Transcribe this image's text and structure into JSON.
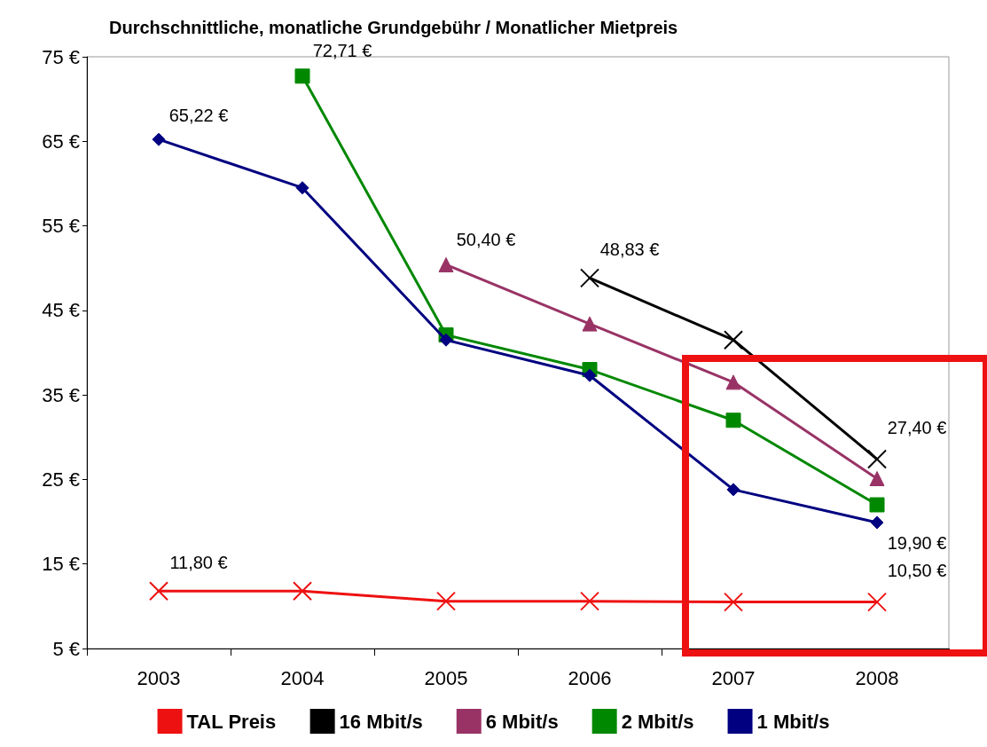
{
  "chart_data": {
    "type": "line",
    "title": "Durchschnittliche, monatliche Grundgebühr / Monatlicher Mietpreis",
    "categories": [
      "2003",
      "2004",
      "2005",
      "2006",
      "2007",
      "2008"
    ],
    "series": [
      {
        "name": "TAL Preis",
        "color": "#ee1111",
        "marker": "cross",
        "values": [
          11.8,
          11.8,
          10.6,
          10.6,
          10.5,
          10.5
        ],
        "value_labels": [
          "11,80 €",
          null,
          null,
          null,
          null,
          "10,50 €"
        ]
      },
      {
        "name": "16 Mbit/s",
        "color": "#000000",
        "marker": "cross",
        "values": [
          null,
          null,
          null,
          48.83,
          41.5,
          27.4
        ],
        "value_labels": [
          null,
          null,
          null,
          "48,83 €",
          null,
          "27,40 €"
        ]
      },
      {
        "name": "6 Mbit/s",
        "color": "#993366",
        "marker": "triangle",
        "values": [
          null,
          null,
          50.4,
          43.4,
          36.5,
          25.1
        ],
        "value_labels": [
          null,
          null,
          "50,40 €",
          null,
          null,
          null
        ]
      },
      {
        "name": "2 Mbit/s",
        "color": "#008800",
        "marker": "square",
        "values": [
          null,
          72.71,
          42.1,
          38.0,
          32.0,
          22.0
        ],
        "value_labels": [
          null,
          "72,71 €",
          null,
          null,
          null,
          null
        ]
      },
      {
        "name": "1 Mbit/s",
        "color": "#000080",
        "marker": "diamond",
        "values": [
          65.22,
          59.5,
          41.5,
          37.3,
          23.8,
          19.9
        ],
        "value_labels": [
          "65,22 €",
          null,
          null,
          null,
          null,
          "19,90 €"
        ]
      }
    ],
    "ylim": [
      5,
      75
    ],
    "yticks": [
      {
        "value": 5,
        "label": "5 €"
      },
      {
        "value": 15,
        "label": "15 €"
      },
      {
        "value": 25,
        "label": "25 €"
      },
      {
        "value": 35,
        "label": "35 €"
      },
      {
        "value": 45,
        "label": "45 €"
      },
      {
        "value": 55,
        "label": "55 €"
      },
      {
        "value": 65,
        "label": "65 €"
      },
      {
        "value": 75,
        "label": "75 €"
      }
    ],
    "grid": false,
    "legend": "bottom",
    "line_style": "solid"
  }
}
